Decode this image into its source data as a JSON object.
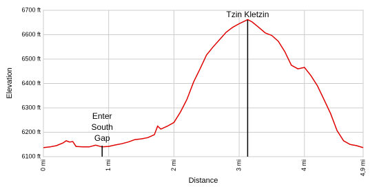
{
  "chart_data": {
    "type": "line",
    "x_label": "Distance",
    "y_label": "Elevation",
    "x": [
      0,
      0.1,
      0.2,
      0.3,
      0.35,
      0.4,
      0.45,
      0.5,
      0.6,
      0.7,
      0.8,
      0.9,
      1.0,
      1.1,
      1.2,
      1.3,
      1.4,
      1.5,
      1.6,
      1.7,
      1.75,
      1.8,
      1.9,
      2.0,
      2.1,
      2.2,
      2.3,
      2.4,
      2.5,
      2.6,
      2.7,
      2.8,
      2.9,
      3.0,
      3.1,
      3.13,
      3.2,
      3.3,
      3.4,
      3.5,
      3.6,
      3.7,
      3.8,
      3.9,
      4.0,
      4.1,
      4.2,
      4.3,
      4.4,
      4.5,
      4.6,
      4.7,
      4.8,
      4.9
    ],
    "series": [
      {
        "name": "Elevation",
        "color": "#e00000",
        "values": [
          6137,
          6140,
          6145,
          6156,
          6165,
          6160,
          6162,
          6142,
          6140,
          6140,
          6147,
          6140,
          6142,
          6148,
          6153,
          6160,
          6170,
          6173,
          6178,
          6190,
          6225,
          6213,
          6225,
          6240,
          6283,
          6335,
          6405,
          6460,
          6517,
          6550,
          6580,
          6610,
          6630,
          6645,
          6658,
          6662,
          6652,
          6630,
          6607,
          6597,
          6573,
          6530,
          6475,
          6460,
          6466,
          6432,
          6390,
          6334,
          6277,
          6207,
          6165,
          6150,
          6145,
          6137
        ]
      }
    ],
    "xlim": [
      0,
      4.9
    ],
    "ylim": [
      6100,
      6700
    ],
    "xticks": [
      {
        "value": 0,
        "label": "0 mi"
      },
      {
        "value": 1,
        "label": "1 mi"
      },
      {
        "value": 2,
        "label": "2 mi"
      },
      {
        "value": 3,
        "label": "3 mi"
      },
      {
        "value": 4,
        "label": "4 mi"
      },
      {
        "value": 4.9,
        "label": "4,9 mi"
      }
    ],
    "yticks": [
      {
        "value": 6100,
        "label": "6100 ft"
      },
      {
        "value": 6200,
        "label": "6200 ft"
      },
      {
        "value": 6300,
        "label": "6300 ft"
      },
      {
        "value": 6400,
        "label": "6400 ft"
      },
      {
        "value": 6500,
        "label": "6500 ft"
      },
      {
        "value": 6600,
        "label": "6600 ft"
      },
      {
        "value": 6700,
        "label": "6700 ft"
      }
    ],
    "grid": true,
    "annotations": [
      {
        "lines": [
          "Tzin Kletzin"
        ],
        "x": 3.13
      },
      {
        "lines": [
          "Enter",
          "South",
          "Gap"
        ],
        "x": 0.9
      }
    ]
  }
}
